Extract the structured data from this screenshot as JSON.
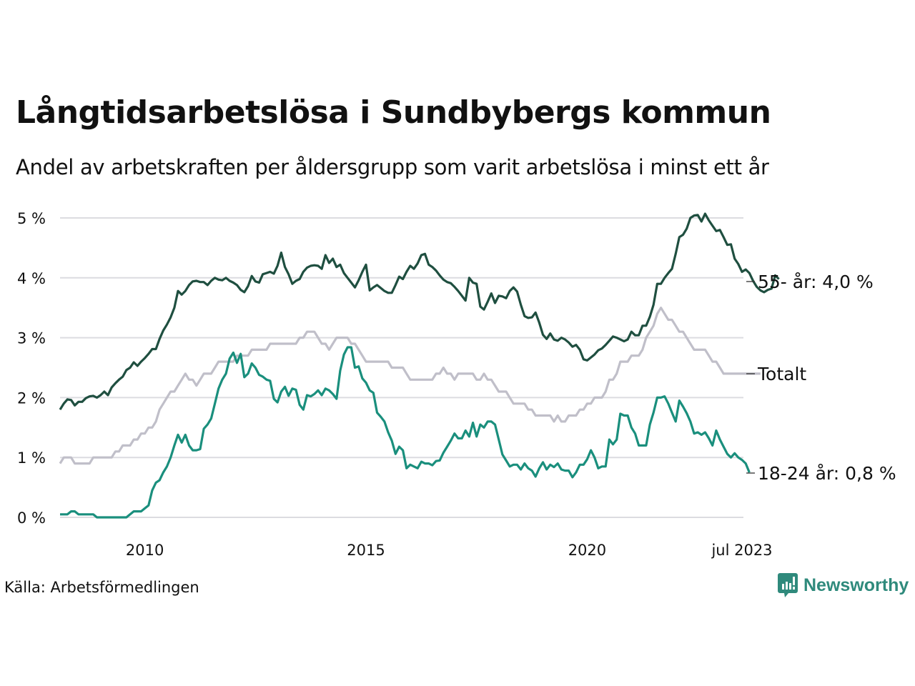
{
  "header": {
    "title": "Långtidsarbetslösa i Sundbybergs kommun",
    "subtitle": "Andel av arbetskraften per åldersgrupp som varit arbetslösa i minst ett år"
  },
  "footer": {
    "source": "Källa: Arbetsförmedlingen",
    "brand": "Newsworthy",
    "brand_icon": "bar-chart-speech-bubble-icon",
    "brand_color": "#2f8a7c"
  },
  "chart_data": {
    "type": "line",
    "title": "Långtidsarbetslösa i Sundbybergs kommun",
    "subtitle": "Andel av arbetskraften per åldersgrupp som varit arbetslösa i minst ett år",
    "xlabel": "",
    "ylabel": "",
    "x_start": "2008-02",
    "x_end": "2023-07",
    "frequency": "monthly",
    "ylim": [
      0,
      5
    ],
    "yticks": [
      0,
      1,
      2,
      3,
      4,
      5
    ],
    "ytick_labels": [
      "0 %",
      "1 %",
      "2 %",
      "3 %",
      "4 %",
      "5 %"
    ],
    "xticks": [
      "2010-01",
      "2015-01",
      "2020-01",
      "2023-07"
    ],
    "xtick_labels": [
      "2010",
      "2015",
      "2020",
      "jul 2023"
    ],
    "grid": true,
    "legend": "direct-labels-right",
    "series": [
      {
        "name": "55- år",
        "end_label": "55- år: 4,0 %",
        "color": "#1f4f40",
        "values": [
          1.8,
          1.9,
          1.97,
          1.96,
          1.87,
          1.93,
          1.93,
          1.99,
          2.02,
          2.03,
          2.0,
          2.04,
          2.1,
          2.04,
          2.17,
          2.24,
          2.3,
          2.35,
          2.46,
          2.5,
          2.59,
          2.53,
          2.6,
          2.66,
          2.73,
          2.81,
          2.81,
          2.98,
          3.12,
          3.22,
          3.34,
          3.5,
          3.78,
          3.72,
          3.78,
          3.88,
          3.94,
          3.95,
          3.93,
          3.93,
          3.88,
          3.95,
          4.0,
          3.97,
          3.96,
          4.0,
          3.95,
          3.92,
          3.88,
          3.8,
          3.76,
          3.86,
          4.03,
          3.94,
          3.92,
          4.06,
          4.08,
          4.1,
          4.07,
          4.2,
          4.42,
          4.18,
          4.06,
          3.9,
          3.95,
          3.98,
          4.1,
          4.17,
          4.2,
          4.21,
          4.2,
          4.15,
          4.38,
          4.25,
          4.32,
          4.18,
          4.22,
          4.08,
          4.0,
          3.92,
          3.84,
          3.96,
          4.1,
          4.22,
          3.79,
          3.84,
          3.88,
          3.83,
          3.78,
          3.75,
          3.75,
          3.88,
          4.02,
          3.98,
          4.1,
          4.2,
          4.15,
          4.24,
          4.38,
          4.4,
          4.22,
          4.18,
          4.12,
          4.04,
          3.97,
          3.93,
          3.91,
          3.85,
          3.78,
          3.7,
          3.62,
          4.0,
          3.92,
          3.9,
          3.52,
          3.47,
          3.6,
          3.74,
          3.58,
          3.7,
          3.69,
          3.66,
          3.78,
          3.84,
          3.77,
          3.55,
          3.36,
          3.33,
          3.34,
          3.42,
          3.25,
          3.05,
          2.98,
          3.07,
          2.97,
          2.95,
          3.0,
          2.97,
          2.92,
          2.85,
          2.88,
          2.8,
          2.64,
          2.62,
          2.67,
          2.72,
          2.79,
          2.82,
          2.88,
          2.95,
          3.02,
          3.0,
          2.97,
          2.94,
          2.97,
          3.1,
          3.04,
          3.04,
          3.2,
          3.2,
          3.35,
          3.55,
          3.9,
          3.9,
          4.0,
          4.08,
          4.15,
          4.4,
          4.68,
          4.72,
          4.82,
          5.0,
          5.04,
          5.05,
          4.94,
          5.07,
          4.96,
          4.87,
          4.78,
          4.8,
          4.68,
          4.55,
          4.56,
          4.32,
          4.23,
          4.1,
          4.14,
          4.08,
          3.95,
          3.85,
          3.79,
          3.76,
          3.8,
          3.82,
          4.04,
          3.98
        ]
      },
      {
        "name": "Totalt",
        "end_label": "Totalt",
        "color": "#c0bfc9",
        "values": [
          0.9,
          1.0,
          1.0,
          1.0,
          0.9,
          0.9,
          0.9,
          0.9,
          0.9,
          1.0,
          1.0,
          1.0,
          1.0,
          1.0,
          1.0,
          1.1,
          1.1,
          1.2,
          1.2,
          1.2,
          1.3,
          1.3,
          1.4,
          1.4,
          1.5,
          1.5,
          1.6,
          1.8,
          1.9,
          2.0,
          2.1,
          2.1,
          2.2,
          2.3,
          2.4,
          2.3,
          2.3,
          2.2,
          2.3,
          2.4,
          2.4,
          2.4,
          2.5,
          2.6,
          2.6,
          2.6,
          2.6,
          2.6,
          2.7,
          2.7,
          2.7,
          2.7,
          2.8,
          2.8,
          2.8,
          2.8,
          2.8,
          2.9,
          2.9,
          2.9,
          2.9,
          2.9,
          2.9,
          2.9,
          2.9,
          3.0,
          3.0,
          3.1,
          3.1,
          3.1,
          3.0,
          2.9,
          2.9,
          2.8,
          2.9,
          3.0,
          3.0,
          3.0,
          3.0,
          2.9,
          2.9,
          2.8,
          2.7,
          2.6,
          2.6,
          2.6,
          2.6,
          2.6,
          2.6,
          2.6,
          2.5,
          2.5,
          2.5,
          2.5,
          2.4,
          2.3,
          2.3,
          2.3,
          2.3,
          2.3,
          2.3,
          2.3,
          2.4,
          2.4,
          2.5,
          2.4,
          2.4,
          2.3,
          2.4,
          2.4,
          2.4,
          2.4,
          2.4,
          2.3,
          2.3,
          2.4,
          2.3,
          2.3,
          2.2,
          2.1,
          2.1,
          2.1,
          2.0,
          1.9,
          1.9,
          1.9,
          1.9,
          1.8,
          1.8,
          1.7,
          1.7,
          1.7,
          1.7,
          1.7,
          1.6,
          1.7,
          1.6,
          1.6,
          1.7,
          1.7,
          1.7,
          1.8,
          1.8,
          1.9,
          1.9,
          2.0,
          2.0,
          2.0,
          2.1,
          2.3,
          2.3,
          2.4,
          2.6,
          2.6,
          2.6,
          2.7,
          2.7,
          2.7,
          2.8,
          3.0,
          3.1,
          3.2,
          3.4,
          3.5,
          3.4,
          3.3,
          3.3,
          3.2,
          3.1,
          3.1,
          3.0,
          2.9,
          2.8,
          2.8,
          2.8,
          2.8,
          2.7,
          2.6,
          2.6,
          2.5,
          2.4,
          2.4,
          2.4,
          2.4,
          2.4,
          2.4,
          2.4,
          2.4,
          2.4,
          2.4,
          2.4
        ]
      },
      {
        "name": "18-24 år",
        "end_label": "18-24 år: 0,8 %",
        "color": "#1a8f7d",
        "values": [
          0.05,
          0.05,
          0.05,
          0.1,
          0.1,
          0.05,
          0.05,
          0.05,
          0.05,
          0.05,
          0.0,
          0.0,
          0.0,
          0.0,
          0.0,
          0.0,
          0.0,
          0.0,
          0.0,
          0.05,
          0.1,
          0.1,
          0.1,
          0.15,
          0.2,
          0.45,
          0.58,
          0.62,
          0.75,
          0.85,
          1.0,
          1.2,
          1.38,
          1.25,
          1.38,
          1.2,
          1.12,
          1.12,
          1.14,
          1.48,
          1.55,
          1.65,
          1.9,
          2.15,
          2.3,
          2.4,
          2.65,
          2.75,
          2.58,
          2.73,
          2.34,
          2.4,
          2.57,
          2.5,
          2.38,
          2.35,
          2.3,
          2.28,
          1.98,
          1.92,
          2.1,
          2.18,
          2.03,
          2.15,
          2.13,
          1.88,
          1.8,
          2.04,
          2.02,
          2.06,
          2.12,
          2.04,
          2.15,
          2.12,
          2.06,
          1.98,
          2.45,
          2.72,
          2.84,
          2.84,
          2.5,
          2.52,
          2.32,
          2.25,
          2.12,
          2.08,
          1.75,
          1.68,
          1.6,
          1.42,
          1.28,
          1.06,
          1.18,
          1.12,
          0.82,
          0.88,
          0.85,
          0.82,
          0.93,
          0.9,
          0.9,
          0.87,
          0.94,
          0.95,
          1.08,
          1.18,
          1.28,
          1.4,
          1.32,
          1.32,
          1.45,
          1.35,
          1.58,
          1.35,
          1.55,
          1.5,
          1.6,
          1.6,
          1.55,
          1.3,
          1.05,
          0.95,
          0.85,
          0.88,
          0.88,
          0.8,
          0.9,
          0.82,
          0.78,
          0.68,
          0.82,
          0.92,
          0.8,
          0.88,
          0.84,
          0.9,
          0.8,
          0.78,
          0.78,
          0.67,
          0.75,
          0.88,
          0.88,
          0.97,
          1.12,
          1.0,
          0.82,
          0.85,
          0.85,
          1.3,
          1.22,
          1.3,
          1.73,
          1.7,
          1.7,
          1.5,
          1.4,
          1.2,
          1.2,
          1.2,
          1.55,
          1.75,
          2.0,
          2.0,
          2.02,
          1.9,
          1.75,
          1.6,
          1.95,
          1.85,
          1.74,
          1.6,
          1.4,
          1.42,
          1.38,
          1.42,
          1.32,
          1.2,
          1.45,
          1.3,
          1.18,
          1.06,
          1.0,
          1.07,
          1.0,
          0.96,
          0.9,
          0.75
        ]
      }
    ]
  }
}
